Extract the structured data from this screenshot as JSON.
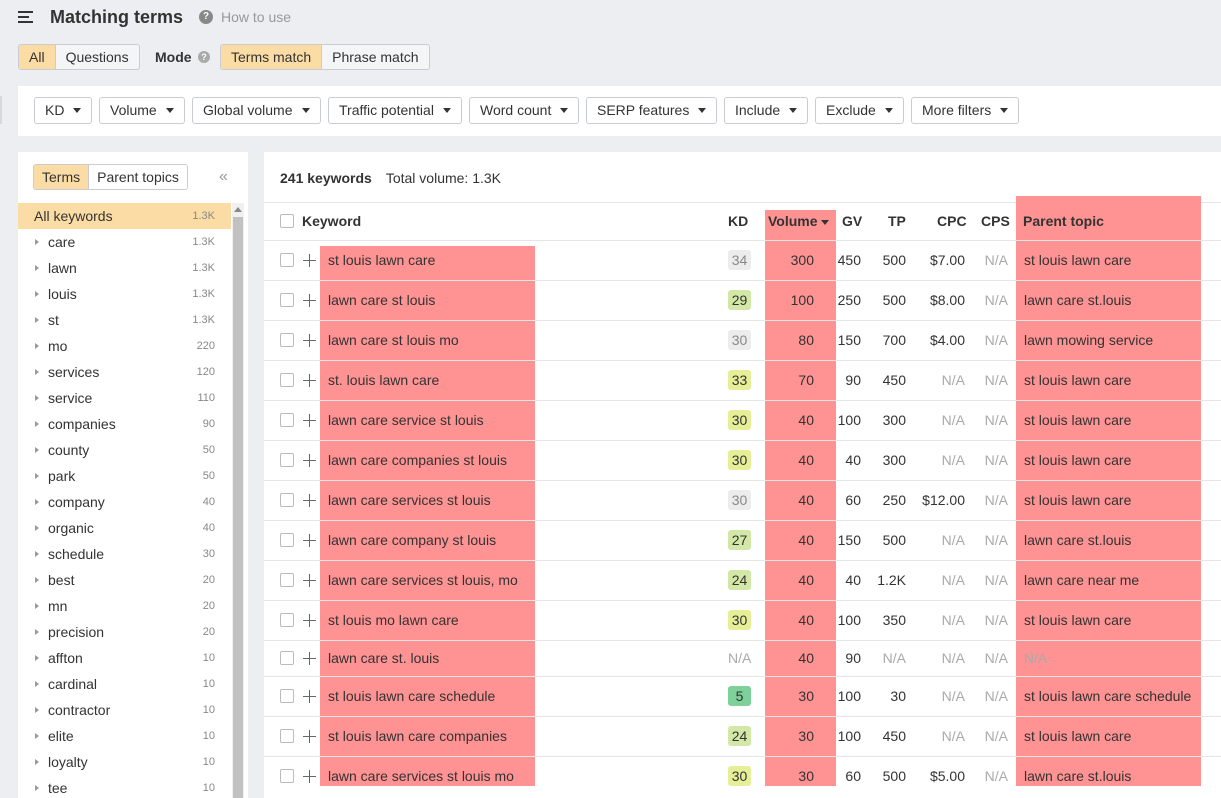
{
  "header": {
    "title": "Matching terms",
    "how_to": "How to use"
  },
  "tabs": {
    "all": "All",
    "questions": "Questions"
  },
  "mode": {
    "label": "Mode",
    "terms_match": "Terms match",
    "phrase_match": "Phrase match"
  },
  "filters": [
    "KD",
    "Volume",
    "Global volume",
    "Traffic potential",
    "Word count",
    "SERP features",
    "Include",
    "Exclude",
    "More filters"
  ],
  "sidebar": {
    "tabs": {
      "terms": "Terms",
      "parent_topics": "Parent topics"
    },
    "items": [
      {
        "label": "All keywords",
        "count": "1.3K"
      },
      {
        "label": "care",
        "count": "1.3K"
      },
      {
        "label": "lawn",
        "count": "1.3K"
      },
      {
        "label": "louis",
        "count": "1.3K"
      },
      {
        "label": "st",
        "count": "1.3K"
      },
      {
        "label": "mo",
        "count": "220"
      },
      {
        "label": "services",
        "count": "120"
      },
      {
        "label": "service",
        "count": "110"
      },
      {
        "label": "companies",
        "count": "90"
      },
      {
        "label": "county",
        "count": "50"
      },
      {
        "label": "park",
        "count": "50"
      },
      {
        "label": "company",
        "count": "40"
      },
      {
        "label": "organic",
        "count": "40"
      },
      {
        "label": "schedule",
        "count": "30"
      },
      {
        "label": "best",
        "count": "20"
      },
      {
        "label": "mn",
        "count": "20"
      },
      {
        "label": "precision",
        "count": "20"
      },
      {
        "label": "affton",
        "count": "10"
      },
      {
        "label": "cardinal",
        "count": "10"
      },
      {
        "label": "contractor",
        "count": "10"
      },
      {
        "label": "elite",
        "count": "10"
      },
      {
        "label": "loyalty",
        "count": "10"
      },
      {
        "label": "tee",
        "count": "10"
      }
    ]
  },
  "summary": {
    "keywords": "241 keywords",
    "total_volume": "Total volume: 1.3K"
  },
  "columns": {
    "keyword": "Keyword",
    "kd": "KD",
    "volume": "Volume",
    "gv": "GV",
    "tp": "TP",
    "cpc": "CPC",
    "cps": "CPS",
    "parent_topic": "Parent topic"
  },
  "colors": {
    "highlight": "#ff9292",
    "selected": "#fcdca5"
  },
  "rows": [
    {
      "keyword": "st louis lawn care",
      "kd": "34",
      "kd_color": "grey",
      "volume": "300",
      "gv": "450",
      "tp": "500",
      "cpc": "$7.00",
      "cps": "N/A",
      "parent": "st louis lawn care"
    },
    {
      "keyword": "lawn care st louis",
      "kd": "29",
      "kd_color": "lgreen",
      "volume": "100",
      "gv": "250",
      "tp": "500",
      "cpc": "$8.00",
      "cps": "N/A",
      "parent": "lawn care st.louis"
    },
    {
      "keyword": "lawn care st louis mo",
      "kd": "30",
      "kd_color": "grey",
      "volume": "80",
      "gv": "150",
      "tp": "700",
      "cpc": "$4.00",
      "cps": "N/A",
      "parent": "lawn mowing service"
    },
    {
      "keyword": "st. louis lawn care",
      "kd": "33",
      "kd_color": "yellow",
      "volume": "70",
      "gv": "90",
      "tp": "450",
      "cpc": "N/A",
      "cps": "N/A",
      "parent": "st louis lawn care"
    },
    {
      "keyword": "lawn care service st louis",
      "kd": "30",
      "kd_color": "yellow",
      "volume": "40",
      "gv": "100",
      "tp": "300",
      "cpc": "N/A",
      "cps": "N/A",
      "parent": "st louis lawn care"
    },
    {
      "keyword": "lawn care companies st louis",
      "kd": "30",
      "kd_color": "yellow",
      "volume": "40",
      "gv": "40",
      "tp": "300",
      "cpc": "N/A",
      "cps": "N/A",
      "parent": "st louis lawn care"
    },
    {
      "keyword": "lawn care services st louis",
      "kd": "30",
      "kd_color": "grey",
      "volume": "40",
      "gv": "60",
      "tp": "250",
      "cpc": "$12.00",
      "cps": "N/A",
      "parent": "st louis lawn care"
    },
    {
      "keyword": "lawn care company st louis",
      "kd": "27",
      "kd_color": "lgreen",
      "volume": "40",
      "gv": "150",
      "tp": "500",
      "cpc": "N/A",
      "cps": "N/A",
      "parent": "lawn care st.louis"
    },
    {
      "keyword": "lawn care services st louis, mo",
      "kd": "24",
      "kd_color": "lgreen",
      "volume": "40",
      "gv": "40",
      "tp": "1.2K",
      "cpc": "N/A",
      "cps": "N/A",
      "parent": "lawn care near me"
    },
    {
      "keyword": "st louis mo lawn care",
      "kd": "30",
      "kd_color": "yellow",
      "volume": "40",
      "gv": "100",
      "tp": "350",
      "cpc": "N/A",
      "cps": "N/A",
      "parent": "st louis lawn care"
    },
    {
      "keyword": "lawn care st. louis",
      "kd": "N/A",
      "kd_color": "na",
      "volume": "40",
      "gv": "90",
      "tp": "N/A",
      "cpc": "N/A",
      "cps": "N/A",
      "parent": "N/A"
    },
    {
      "keyword": "st louis lawn care schedule",
      "kd": "5",
      "kd_color": "green",
      "volume": "30",
      "gv": "100",
      "tp": "30",
      "cpc": "N/A",
      "cps": "N/A",
      "parent": "st louis lawn care schedule"
    },
    {
      "keyword": "st louis lawn care companies",
      "kd": "24",
      "kd_color": "lgreen",
      "volume": "30",
      "gv": "100",
      "tp": "450",
      "cpc": "N/A",
      "cps": "N/A",
      "parent": "st louis lawn care"
    },
    {
      "keyword": "lawn care services st louis mo",
      "kd": "30",
      "kd_color": "yellow",
      "volume": "30",
      "gv": "60",
      "tp": "500",
      "cpc": "$5.00",
      "cps": "N/A",
      "parent": "lawn care st.louis"
    }
  ]
}
